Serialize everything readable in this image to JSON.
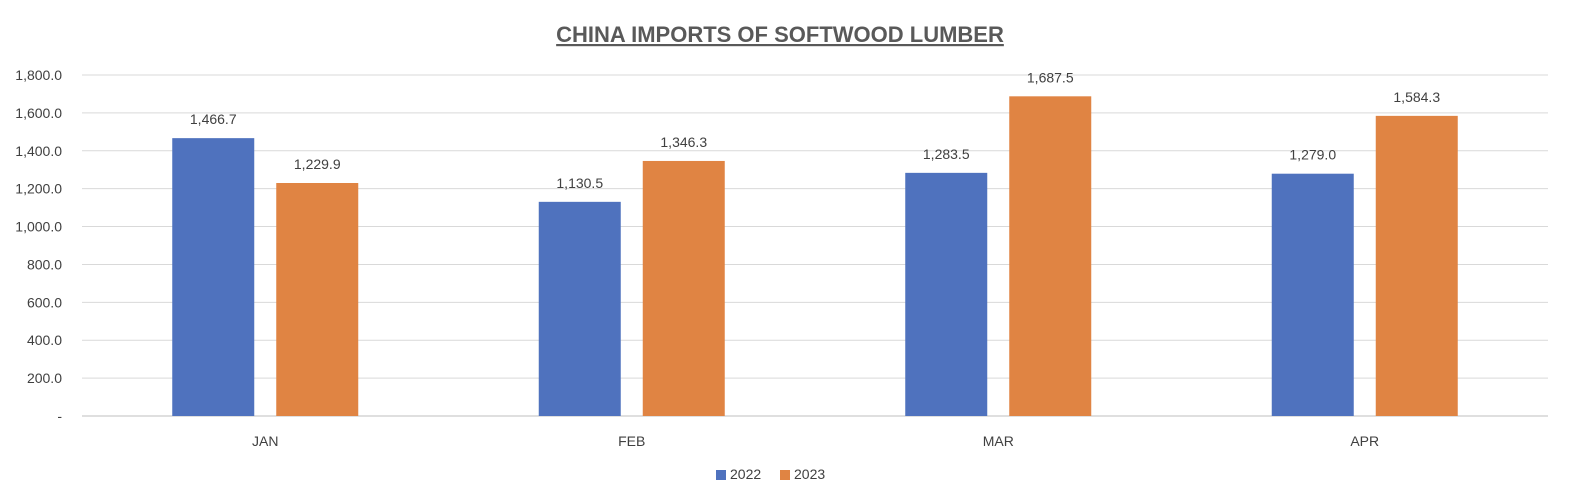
{
  "chart_data": {
    "type": "bar",
    "title": "CHINA IMPORTS OF SOFTWOOD LUMBER",
    "categories": [
      "JAN",
      "FEB",
      "MAR",
      "APR"
    ],
    "series": [
      {
        "name": "2022",
        "values": [
          1466.7,
          1130.5,
          1283.5,
          1279.0
        ],
        "labels": [
          "1,466.7",
          "1,130.5",
          "1,283.5",
          "1,279.0"
        ],
        "color": "#4f72be"
      },
      {
        "name": "2023",
        "values": [
          1229.9,
          1346.3,
          1687.5,
          1584.3
        ],
        "labels": [
          "1,229.9",
          "1,346.3",
          "1,687.5",
          "1,584.3"
        ],
        "color": "#e08443"
      }
    ],
    "yticks": [
      0,
      200,
      400,
      600,
      800,
      1000,
      1200,
      1400,
      1600,
      1800
    ],
    "ytick_labels": [
      "-",
      "200.0",
      "400.0",
      "600.0",
      "800.0",
      "1,000.0",
      "1,200.0",
      "1,400.0",
      "1,600.0",
      "1,800.0"
    ],
    "ylim": [
      0,
      1800
    ],
    "xlabel": "",
    "ylabel": "",
    "grid": true,
    "legend": "bottom-center"
  }
}
